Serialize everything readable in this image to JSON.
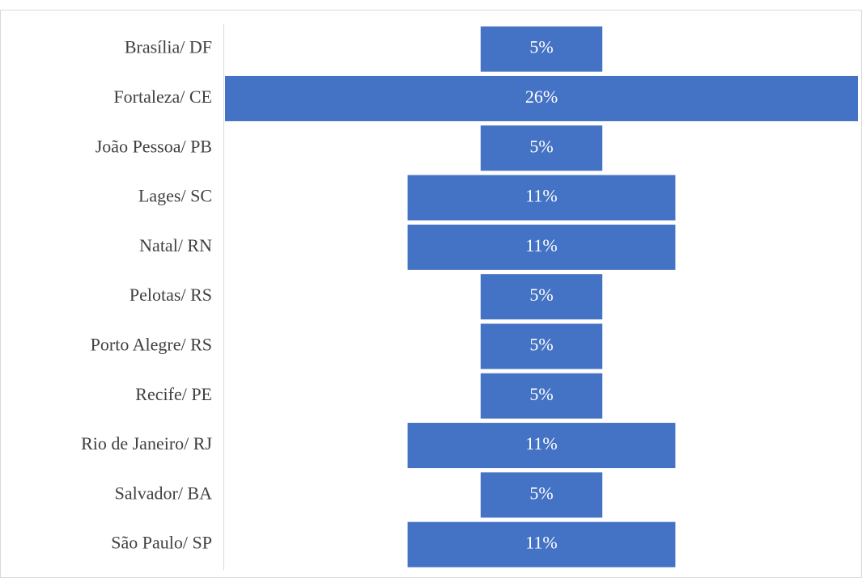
{
  "chart_data": {
    "type": "funnel",
    "categories": [
      "Brasília/ DF",
      "Fortaleza/ CE",
      "João Pessoa/ PB",
      "Lages/ SC",
      "Natal/ RN",
      "Pelotas/ RS",
      "Porto Alegre/ RS",
      "Recife/ PE",
      "Rio de Janeiro/ RJ",
      "Salvador/ BA",
      "São Paulo/ SP"
    ],
    "values": [
      5,
      26,
      5,
      11,
      11,
      5,
      5,
      5,
      11,
      5,
      11
    ],
    "value_labels": [
      "5%",
      "26%",
      "5%",
      "11%",
      "11%",
      "5%",
      "5%",
      "5%",
      "11%",
      "5%",
      "11%"
    ],
    "color": "#4472c4"
  }
}
